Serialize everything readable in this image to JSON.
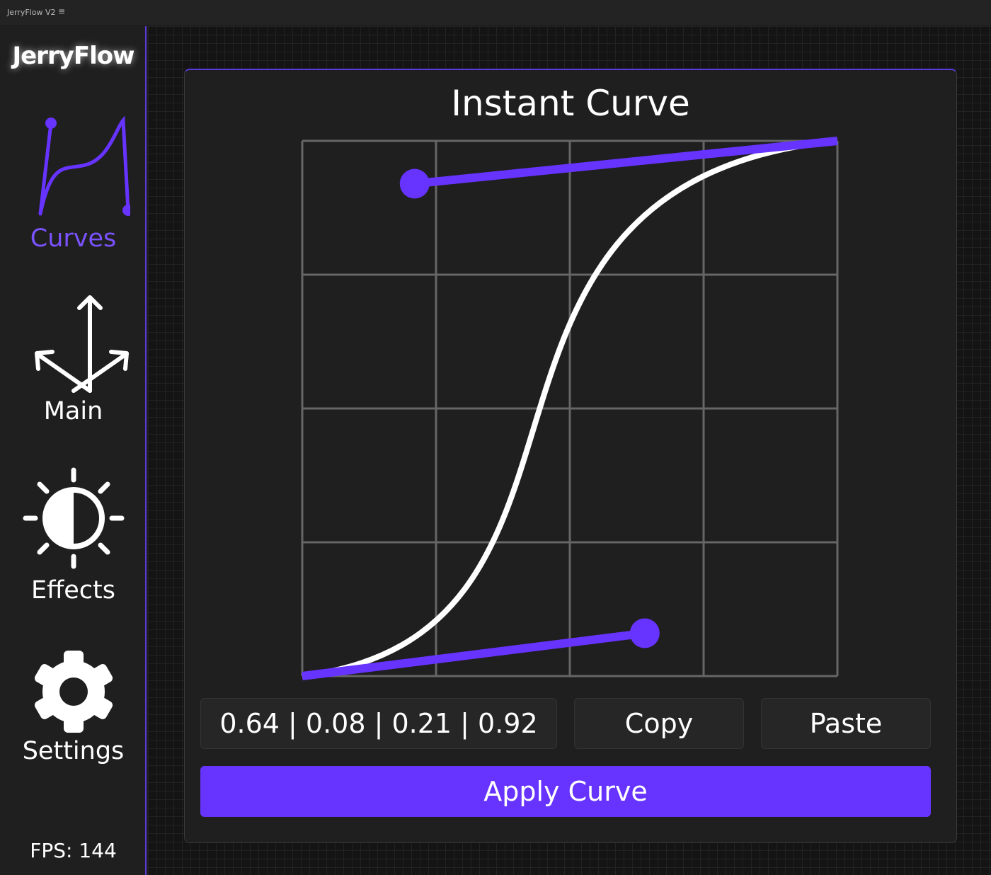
{
  "window": {
    "title": "JerryFlow V2",
    "menu_icon": "hamburger-icon"
  },
  "sidebar": {
    "logo": "JerryFlow",
    "items": [
      {
        "label": "Curves",
        "icon": "curve-icon",
        "active": true
      },
      {
        "label": "Main",
        "icon": "arrows-icon"
      },
      {
        "label": "Effects",
        "icon": "contrast-sun-icon"
      },
      {
        "label": "Settings",
        "icon": "gear-icon"
      }
    ],
    "fps": "FPS: 144"
  },
  "panel": {
    "title": "Instant Curve",
    "curve": {
      "p1": [
        0.64,
        0.08
      ],
      "p2": [
        0.21,
        0.92
      ]
    },
    "values": "0.64 | 0.08 | 0.21 | 0.92",
    "copy": "Copy",
    "paste": "Paste",
    "apply": "Apply Curve"
  },
  "colors": {
    "accent": "#6633ff",
    "curve": "#ffffff",
    "grid": "#666666"
  }
}
